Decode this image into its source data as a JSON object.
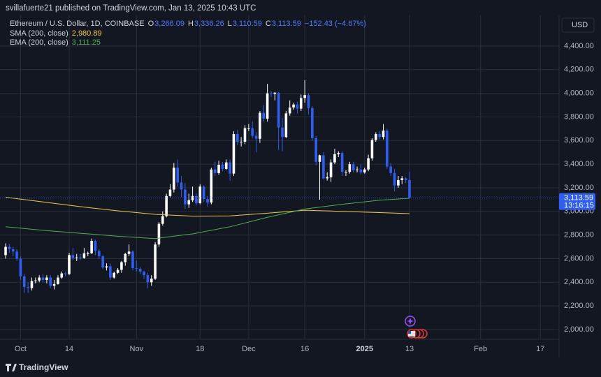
{
  "chart_data": {
    "type": "candlestick",
    "header": "svillafuerte21 published on TradingView.com, Jan 13, 2025 10:43 UTC",
    "legend": {
      "symbol": "Ethereum / U.S. Dollar, 1D, COINBASE",
      "fields": [
        {
          "key": "O",
          "value": {
            "value": 3266.09,
            "label": "3,266.09"
          }
        },
        {
          "key": "H",
          "value": {
            "value": 3336.26,
            "label": "3,336.26"
          }
        },
        {
          "key": "L",
          "value": {
            "value": 3110.59,
            "label": "3,110.59"
          }
        },
        {
          "key": "C",
          "value": {
            "value": 3113.59,
            "label": "3,113.59"
          }
        }
      ],
      "change": {
        "value": -152.43,
        "label": "−152.43"
      },
      "change_pct": {
        "value": -4.67,
        "label": "(−4.67%)"
      }
    },
    "currency": "USD",
    "last_price": {
      "value": 3113.59,
      "label": "3,113.59"
    },
    "countdown": "13:16:15",
    "watermark": "TradingView",
    "grid": true,
    "xlim": [
      -1.5,
      148
    ],
    "ylim": [
      1923,
      4790
    ],
    "xticks": [
      {
        "value": 4,
        "label": "Oct"
      },
      {
        "value": 17,
        "label": "14"
      },
      {
        "value": 35,
        "label": "Nov"
      },
      {
        "value": 52,
        "label": "18"
      },
      {
        "value": 65,
        "label": "Dec"
      },
      {
        "value": 80,
        "label": "16"
      },
      {
        "value": 96,
        "label": "2025"
      },
      {
        "value": 108,
        "label": "13"
      },
      {
        "value": 127,
        "label": "Feb"
      },
      {
        "value": 143,
        "label": "17"
      }
    ],
    "yticks": [
      {
        "value": 2000,
        "label": "2,000.00"
      },
      {
        "value": 2200,
        "label": "2,200.00"
      },
      {
        "value": 2400,
        "label": "2,400.00"
      },
      {
        "value": 2600,
        "label": "2,600.00"
      },
      {
        "value": 2800,
        "label": "2,800.00"
      },
      {
        "value": 3000,
        "label": "3,000.00"
      },
      {
        "value": 3200,
        "label": "3,200.00"
      },
      {
        "value": 3400,
        "label": "3,400.00"
      },
      {
        "value": 3600,
        "label": "3,600.00"
      },
      {
        "value": 3800,
        "label": "3,800.00"
      },
      {
        "value": 4000,
        "label": "4,000.00"
      },
      {
        "value": 4200,
        "label": "4,200.00"
      },
      {
        "value": 4400,
        "label": "4,400.00"
      }
    ],
    "series": [
      {
        "up_color": "#ffffff",
        "down_color": "#2f5ef0",
        "open": [
          2630,
          2700,
          2680,
          2660,
          2600,
          2450,
          2360,
          2350,
          2410,
          2415,
          2440,
          2420,
          2440,
          2370,
          2385,
          2440,
          2475,
          2470,
          2630,
          2605,
          2610,
          2605,
          2645,
          2645,
          2750,
          2665,
          2620,
          2525,
          2535,
          2440,
          2480,
          2505,
          2570,
          2640,
          2660,
          2520,
          2515,
          2490,
          2460,
          2400,
          2430,
          2720,
          2895,
          2960,
          3130,
          3185,
          3370,
          3245,
          3185,
          3060,
          3095,
          3130,
          3070,
          3210,
          3105,
          3075,
          3355,
          3325,
          3395,
          3360,
          3415,
          3320,
          3655,
          3590,
          3590,
          3705,
          3705,
          3640,
          3615,
          3835,
          3785,
          4000,
          3995,
          4005,
          3710,
          3630,
          3830,
          3880,
          3905,
          3870,
          3960,
          3985,
          3875,
          3620,
          3420,
          3475,
          3280,
          3290,
          3415,
          3485,
          3495,
          3335,
          3335,
          3400,
          3350,
          3355,
          3330,
          3355,
          3450,
          3605,
          3655,
          3630,
          3685,
          3380,
          3325,
          3220,
          3265,
          3280,
          3266.09
        ],
        "high": [
          2730,
          2725,
          2700,
          2680,
          2620,
          2470,
          2400,
          2440,
          2440,
          2460,
          2470,
          2460,
          2460,
          2420,
          2460,
          2490,
          2490,
          2650,
          2690,
          2640,
          2640,
          2690,
          2660,
          2770,
          2760,
          2680,
          2630,
          2560,
          2560,
          2490,
          2520,
          2580,
          2650,
          2720,
          2670,
          2585,
          2530,
          2500,
          2480,
          2460,
          2740,
          2910,
          3000,
          3150,
          3230,
          3410,
          3440,
          3300,
          3240,
          3150,
          3210,
          3150,
          3230,
          3220,
          3130,
          3370,
          3420,
          3430,
          3420,
          3440,
          3440,
          3680,
          3690,
          3630,
          3730,
          3740,
          3760,
          3670,
          3850,
          3900,
          4080,
          4020,
          4010,
          4010,
          3790,
          3850,
          3940,
          3920,
          3930,
          3990,
          4110,
          4000,
          3890,
          3640,
          3480,
          3500,
          3330,
          3440,
          3530,
          3510,
          3510,
          3350,
          3420,
          3420,
          3380,
          3400,
          3370,
          3480,
          3620,
          3670,
          3680,
          3740,
          3700,
          3410,
          3360,
          3300,
          3300,
          3290,
          3336.26
        ],
        "low": [
          2600,
          2650,
          2620,
          2580,
          2420,
          2310,
          2310,
          2330,
          2390,
          2400,
          2400,
          2390,
          2350,
          2340,
          2380,
          2430,
          2450,
          2460,
          2590,
          2580,
          2590,
          2600,
          2620,
          2640,
          2630,
          2600,
          2510,
          2500,
          2420,
          2430,
          2470,
          2480,
          2540,
          2620,
          2500,
          2490,
          2470,
          2430,
          2350,
          2370,
          2420,
          2700,
          2880,
          2950,
          3120,
          3160,
          3210,
          3120,
          3020,
          3030,
          3080,
          3050,
          3060,
          3080,
          3040,
          3060,
          3300,
          3310,
          3340,
          3350,
          3260,
          3300,
          3560,
          3550,
          3570,
          3680,
          3620,
          3500,
          3580,
          3760,
          3760,
          3970,
          3940,
          3520,
          3510,
          3620,
          3810,
          3860,
          3830,
          3850,
          3920,
          3820,
          3600,
          3390,
          3100,
          3270,
          3260,
          3250,
          3400,
          3460,
          3300,
          3300,
          3320,
          3330,
          3330,
          3310,
          3320,
          3340,
          3430,
          3590,
          3610,
          3610,
          3360,
          3300,
          3170,
          3200,
          3230,
          3240,
          3110.59
        ],
        "close": [
          2700,
          2680,
          2660,
          2600,
          2450,
          2360,
          2350,
          2410,
          2415,
          2440,
          2420,
          2440,
          2370,
          2385,
          2440,
          2475,
          2470,
          2630,
          2605,
          2610,
          2605,
          2645,
          2645,
          2750,
          2665,
          2620,
          2525,
          2535,
          2440,
          2480,
          2505,
          2570,
          2640,
          2660,
          2520,
          2515,
          2490,
          2460,
          2400,
          2430,
          2720,
          2895,
          2960,
          3130,
          3185,
          3370,
          3245,
          3185,
          3060,
          3095,
          3130,
          3070,
          3210,
          3105,
          3075,
          3355,
          3325,
          3395,
          3360,
          3415,
          3320,
          3655,
          3590,
          3590,
          3705,
          3705,
          3640,
          3615,
          3835,
          3785,
          4000,
          3995,
          4005,
          3710,
          3630,
          3830,
          3880,
          3905,
          3870,
          3960,
          3985,
          3875,
          3620,
          3420,
          3475,
          3280,
          3290,
          3415,
          3485,
          3495,
          3335,
          3335,
          3400,
          3350,
          3355,
          3330,
          3355,
          3450,
          3605,
          3655,
          3630,
          3685,
          3380,
          3325,
          3220,
          3265,
          3280,
          3266.09,
          3113.59
        ]
      },
      {
        "name": "SMA (200, close)",
        "color": "#f2c94c",
        "legend_value": {
          "value": 2980.89,
          "label": "2,980.89"
        },
        "x": [
          0,
          10,
          20,
          30,
          40,
          50,
          60,
          70,
          80,
          90,
          100,
          108
        ],
        "values": [
          3120,
          3080,
          3040,
          3005,
          2975,
          2960,
          2962,
          2985,
          3010,
          3000,
          2990,
          2980.89
        ]
      },
      {
        "name": "EMA (200, close)",
        "color": "#4caf50",
        "legend_value": {
          "value": 3111.25,
          "label": "3,111.25"
        },
        "x": [
          0,
          10,
          20,
          30,
          40,
          50,
          60,
          70,
          80,
          90,
          100,
          108
        ],
        "values": [
          2870,
          2840,
          2815,
          2790,
          2770,
          2810,
          2870,
          2950,
          3020,
          3060,
          3095,
          3111.25
        ]
      }
    ]
  }
}
